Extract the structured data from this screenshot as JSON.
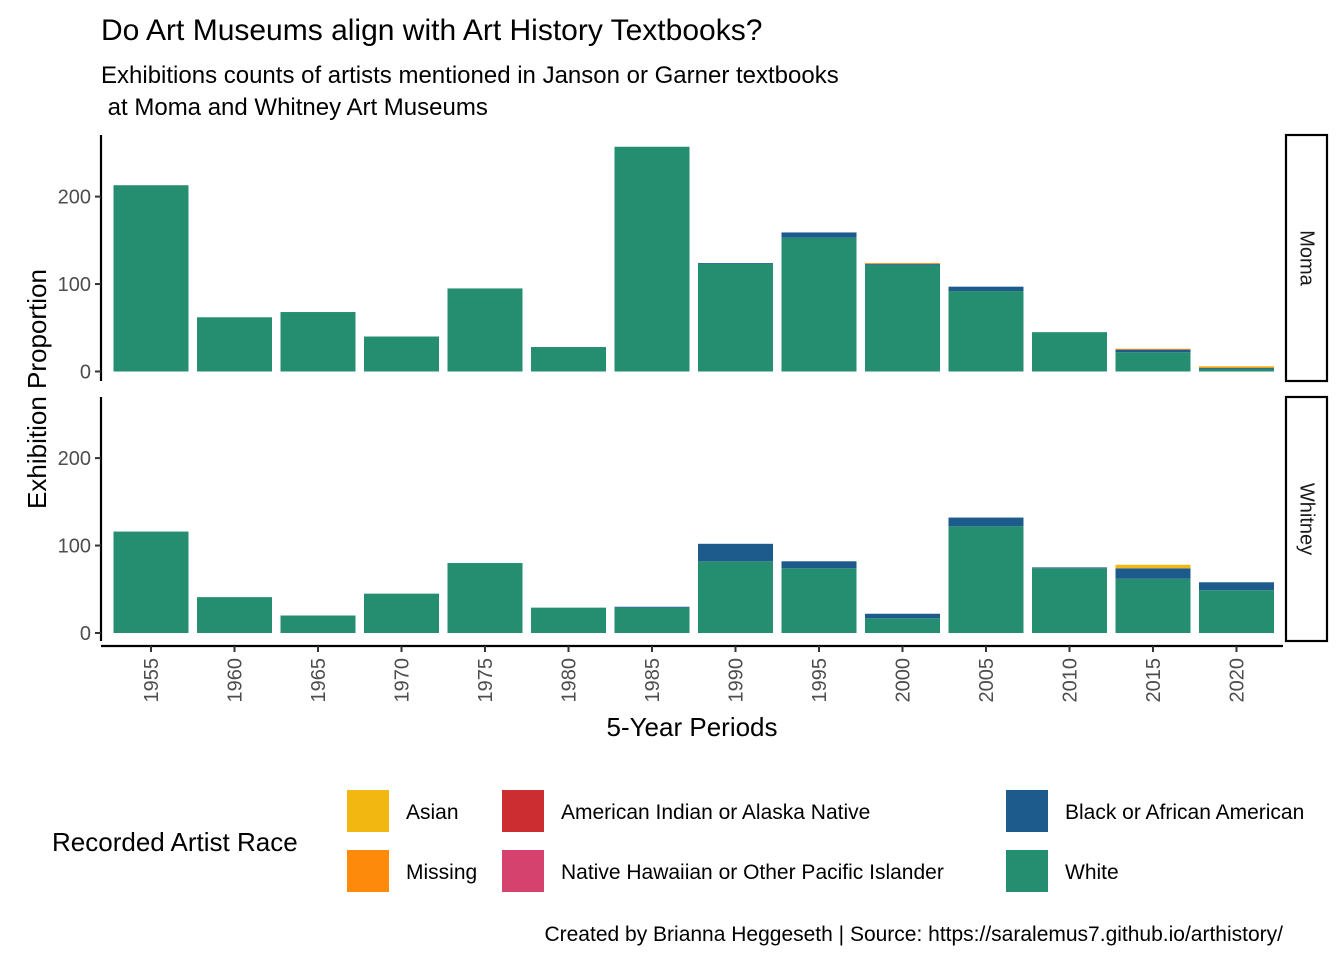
{
  "chart_data": {
    "type": "bar",
    "stacked": true,
    "faceted_by": "museum",
    "title": "Do Art Museums align with Art History Textbooks?",
    "subtitle_lines": [
      "Exhibitions counts of artists mentioned in Janson or Garner textbooks",
      " at Moma and Whitney Art Museums"
    ],
    "xlabel": "5-Year Periods",
    "ylabel": "Exhibition Proportion",
    "ylim": [
      0,
      265
    ],
    "y_ticks": [
      0,
      100,
      200
    ],
    "categories": [
      "1955",
      "1960",
      "1965",
      "1970",
      "1975",
      "1980",
      "1985",
      "1990",
      "1995",
      "2000",
      "2005",
      "2010",
      "2015",
      "2020"
    ],
    "stack_order": [
      "White",
      "Black or African American",
      "Native Hawaiian or Other Pacific Islander",
      "American Indian or Alaska Native",
      "Missing",
      "Asian"
    ],
    "legend": {
      "title": "Recorded Artist Race",
      "position": "bottom",
      "entries": [
        {
          "label": "Asian",
          "color": "#F2B811"
        },
        {
          "label": "Missing",
          "color": "#FE8A0C"
        },
        {
          "label": "American Indian or Alaska Native",
          "color": "#CC2D30"
        },
        {
          "label": "Native Hawaiian or Other Pacific Islander",
          "color": "#D5426E"
        },
        {
          "label": "Black or African American",
          "color": "#1C5B8C"
        },
        {
          "label": "White",
          "color": "#268E70"
        }
      ]
    },
    "facets": [
      {
        "label": "Moma",
        "series": [
          {
            "name": "White",
            "values": [
              213,
              62,
              68,
              40,
              95,
              28,
              257,
              123,
              153,
              122,
              92,
              45,
              22,
              3
            ]
          },
          {
            "name": "Black or African American",
            "values": [
              0,
              0,
              0,
              0,
              0,
              0,
              0,
              1,
              6,
              1,
              5,
              0,
              3,
              1
            ]
          },
          {
            "name": "Native Hawaiian or Other Pacific Islander",
            "values": [
              0,
              0,
              0,
              0,
              0,
              0,
              0,
              0,
              0,
              0,
              0,
              0,
              0,
              0
            ]
          },
          {
            "name": "American Indian or Alaska Native",
            "values": [
              0,
              0,
              0,
              0,
              0,
              0,
              0,
              0,
              0,
              0,
              0,
              0,
              0,
              0
            ]
          },
          {
            "name": "Missing",
            "values": [
              0,
              0,
              0,
              0,
              0,
              0,
              0,
              0,
              0,
              1,
              0,
              0,
              1,
              1
            ]
          },
          {
            "name": "Asian",
            "values": [
              0,
              0,
              0,
              0,
              0,
              0,
              0,
              0,
              0,
              0,
              0,
              0,
              0,
              1
            ]
          }
        ]
      },
      {
        "label": "Whitney",
        "series": [
          {
            "name": "White",
            "values": [
              116,
              41,
              20,
              45,
              80,
              29,
              29,
              82,
              74,
              17,
              122,
              74,
              62,
              49
            ]
          },
          {
            "name": "Black or African American",
            "values": [
              0,
              0,
              0,
              0,
              0,
              0,
              1,
              20,
              8,
              5,
              10,
              1,
              12,
              9
            ]
          },
          {
            "name": "Native Hawaiian or Other Pacific Islander",
            "values": [
              0,
              0,
              0,
              0,
              0,
              0,
              0,
              0,
              0,
              0,
              0,
              0,
              0,
              0
            ]
          },
          {
            "name": "American Indian or Alaska Native",
            "values": [
              0,
              0,
              0,
              0,
              0,
              0,
              0,
              0,
              0,
              0,
              0,
              0,
              0,
              0
            ]
          },
          {
            "name": "Missing",
            "values": [
              0,
              0,
              0,
              0,
              0,
              0,
              0,
              0,
              0,
              0,
              0,
              0,
              0,
              0
            ]
          },
          {
            "name": "Asian",
            "values": [
              0,
              0,
              0,
              0,
              0,
              0,
              0,
              0,
              0,
              0,
              0,
              0,
              4,
              0
            ]
          }
        ]
      }
    ],
    "grid": false,
    "caption": "Created by Brianna Heggeseth | Source: https://saralemus7.github.io/arthistory/"
  }
}
